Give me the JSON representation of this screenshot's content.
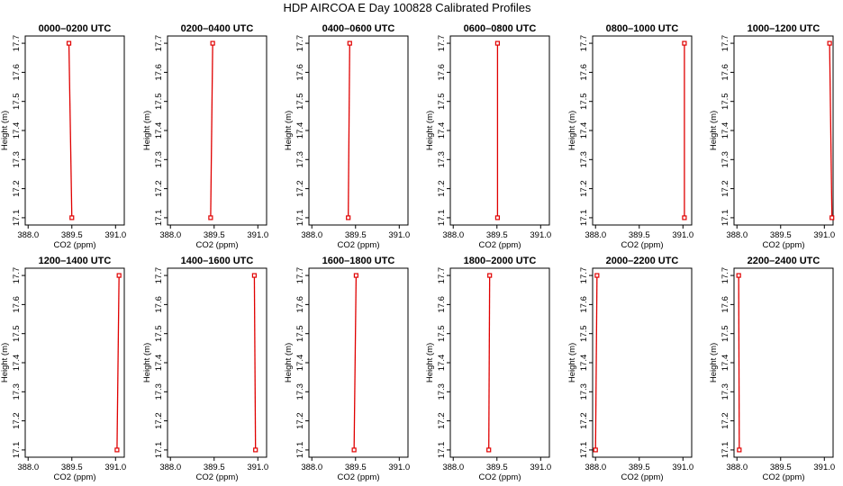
{
  "page": {
    "title": "HDP AIRCOA E  Day 100828  Calibrated Profiles"
  },
  "colors": {
    "series": "#e00000",
    "axes": "#000000",
    "background": "#ffffff"
  },
  "chart_data": {
    "type": "line",
    "layout": "small-multiples 2x6",
    "xlabel": "CO2 (ppm)",
    "ylabel": "Height (m)",
    "xlim": [
      387.9,
      391.3
    ],
    "ylim": [
      17.075,
      17.725
    ],
    "xticks": [
      388.0,
      389.5,
      391.0
    ],
    "xticklabels": [
      "388.0",
      "389.5",
      "391.0"
    ],
    "yticks": [
      17.1,
      17.2,
      17.3,
      17.4,
      17.5,
      17.6,
      17.7
    ],
    "yticklabels": [
      "17.1",
      "17.2",
      "17.3",
      "17.4",
      "17.5",
      "17.6",
      "17.7"
    ],
    "grid": false,
    "legend": "none",
    "marker": "open-square",
    "panels": [
      {
        "title": "0000–0200 UTC",
        "x": [
          389.5,
          389.4
        ],
        "y": [
          17.1,
          17.7
        ]
      },
      {
        "title": "0200–0400 UTC",
        "x": [
          389.38,
          389.45
        ],
        "y": [
          17.1,
          17.7
        ]
      },
      {
        "title": "0400–0600 UTC",
        "x": [
          389.25,
          389.3
        ],
        "y": [
          17.1,
          17.7
        ]
      },
      {
        "title": "0600–0800 UTC",
        "x": [
          389.52,
          389.52
        ],
        "y": [
          17.1,
          17.7
        ]
      },
      {
        "title": "0800–1000 UTC",
        "x": [
          391.05,
          391.05
        ],
        "y": [
          17.1,
          17.7
        ]
      },
      {
        "title": "1000–1200 UTC",
        "x": [
          391.26,
          391.18
        ],
        "y": [
          17.1,
          17.7
        ]
      },
      {
        "title": "1200–1400 UTC",
        "x": [
          391.05,
          391.12
        ],
        "y": [
          17.1,
          17.7
        ]
      },
      {
        "title": "1400–1600 UTC",
        "x": [
          390.92,
          390.88
        ],
        "y": [
          17.1,
          17.7
        ]
      },
      {
        "title": "1600–1800 UTC",
        "x": [
          389.45,
          389.52
        ],
        "y": [
          17.1,
          17.7
        ]
      },
      {
        "title": "1800–2000 UTC",
        "x": [
          389.22,
          389.25
        ],
        "y": [
          17.1,
          17.7
        ]
      },
      {
        "title": "2000–2200 UTC",
        "x": [
          388.0,
          388.05
        ],
        "y": [
          17.1,
          17.7
        ]
      },
      {
        "title": "2200–2400 UTC",
        "x": [
          388.08,
          388.06
        ],
        "y": [
          17.1,
          17.7
        ]
      }
    ]
  }
}
